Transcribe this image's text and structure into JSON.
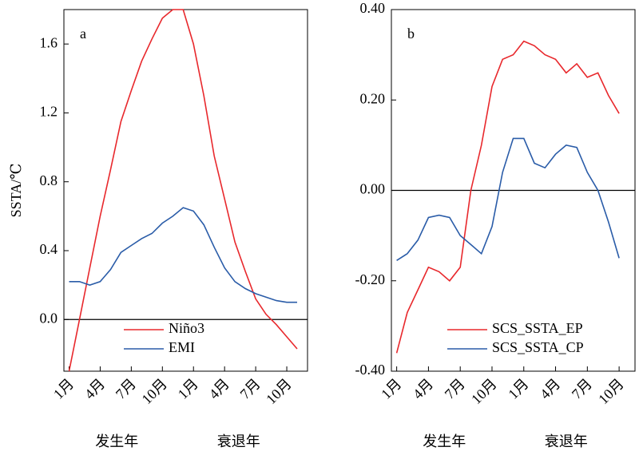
{
  "chart_data": [
    {
      "type": "line",
      "annotation": "a",
      "ylabel": "SSTA/℃",
      "x": [
        1,
        2,
        3,
        4,
        5,
        6,
        7,
        8,
        9,
        10,
        11,
        12,
        13,
        14,
        15,
        16,
        17,
        18,
        19,
        20,
        21,
        22,
        23
      ],
      "xlim": [
        0.5,
        24
      ],
      "xticks": [
        {
          "value": 1,
          "label": "1月"
        },
        {
          "value": 4,
          "label": "4月"
        },
        {
          "value": 7,
          "label": "7月"
        },
        {
          "value": 10,
          "label": "10月"
        },
        {
          "value": 13,
          "label": "1月"
        },
        {
          "value": 16,
          "label": "4月"
        },
        {
          "value": 19,
          "label": "7月"
        },
        {
          "value": 22,
          "label": "10月"
        }
      ],
      "x_group_labels": [
        "发生年",
        "衰退年"
      ],
      "ylim": [
        -0.3,
        1.8
      ],
      "yticks": [
        {
          "value": 0,
          "label": "0.0"
        },
        {
          "value": 0.4,
          "label": "0.4"
        },
        {
          "value": 0.8,
          "label": "0.8"
        },
        {
          "value": 1.2,
          "label": "1.2"
        },
        {
          "value": 1.6,
          "label": "1.6"
        }
      ],
      "zero_line": true,
      "legend": "lower center",
      "series": [
        {
          "name": "Niño3",
          "color": "#e8282c",
          "values": [
            -0.3,
            0.0,
            0.3,
            0.6,
            0.87,
            1.15,
            1.33,
            1.5,
            1.63,
            1.75,
            1.8,
            1.8,
            1.6,
            1.3,
            0.95,
            0.7,
            0.45,
            0.28,
            0.12,
            0.03,
            -0.03,
            -0.1,
            -0.17
          ]
        },
        {
          "name": "EMI",
          "color": "#2a5ca8",
          "values": [
            0.22,
            0.22,
            0.2,
            0.22,
            0.29,
            0.39,
            0.43,
            0.47,
            0.5,
            0.56,
            0.6,
            0.65,
            0.63,
            0.55,
            0.42,
            0.3,
            0.22,
            0.18,
            0.15,
            0.13,
            0.11,
            0.1,
            0.1
          ]
        }
      ]
    },
    {
      "type": "line",
      "annotation": "b",
      "x": [
        1,
        2,
        3,
        4,
        5,
        6,
        7,
        8,
        9,
        10,
        11,
        12,
        13,
        14,
        15,
        16,
        17,
        18,
        19,
        20,
        21,
        22
      ],
      "xlim": [
        0.5,
        23.5
      ],
      "xticks": [
        {
          "value": 1,
          "label": "1月"
        },
        {
          "value": 4,
          "label": "4月"
        },
        {
          "value": 7,
          "label": "7月"
        },
        {
          "value": 10,
          "label": "10月"
        },
        {
          "value": 13,
          "label": "1月"
        },
        {
          "value": 16,
          "label": "4月"
        },
        {
          "value": 19,
          "label": "7月"
        },
        {
          "value": 22,
          "label": "10月"
        }
      ],
      "x_group_labels": [
        "发生年",
        "衰退年"
      ],
      "ylim": [
        -0.4,
        0.4
      ],
      "yticks": [
        {
          "value": -0.4,
          "label": "-0.40"
        },
        {
          "value": -0.2,
          "label": "-0.20"
        },
        {
          "value": 0,
          "label": "0.00"
        },
        {
          "value": 0.2,
          "label": "0.20"
        },
        {
          "value": 0.4,
          "label": "0.40"
        }
      ],
      "zero_line": true,
      "legend": "lower right",
      "series": [
        {
          "name": "SCS_SSTA_EP",
          "color": "#e8282c",
          "values": [
            -0.36,
            -0.27,
            -0.22,
            -0.17,
            -0.18,
            -0.2,
            -0.17,
            0.0,
            0.1,
            0.23,
            0.29,
            0.3,
            0.33,
            0.32,
            0.3,
            0.29,
            0.26,
            0.28,
            0.25,
            0.26,
            0.21,
            0.17
          ]
        },
        {
          "name": "SCS_SSTA_CP",
          "color": "#2a5ca8",
          "values": [
            -0.155,
            -0.14,
            -0.11,
            -0.06,
            -0.055,
            -0.06,
            -0.1,
            -0.12,
            -0.14,
            -0.08,
            0.04,
            0.115,
            0.115,
            0.06,
            0.05,
            0.08,
            0.1,
            0.095,
            0.04,
            0.0,
            -0.07,
            -0.15
          ]
        }
      ]
    }
  ]
}
